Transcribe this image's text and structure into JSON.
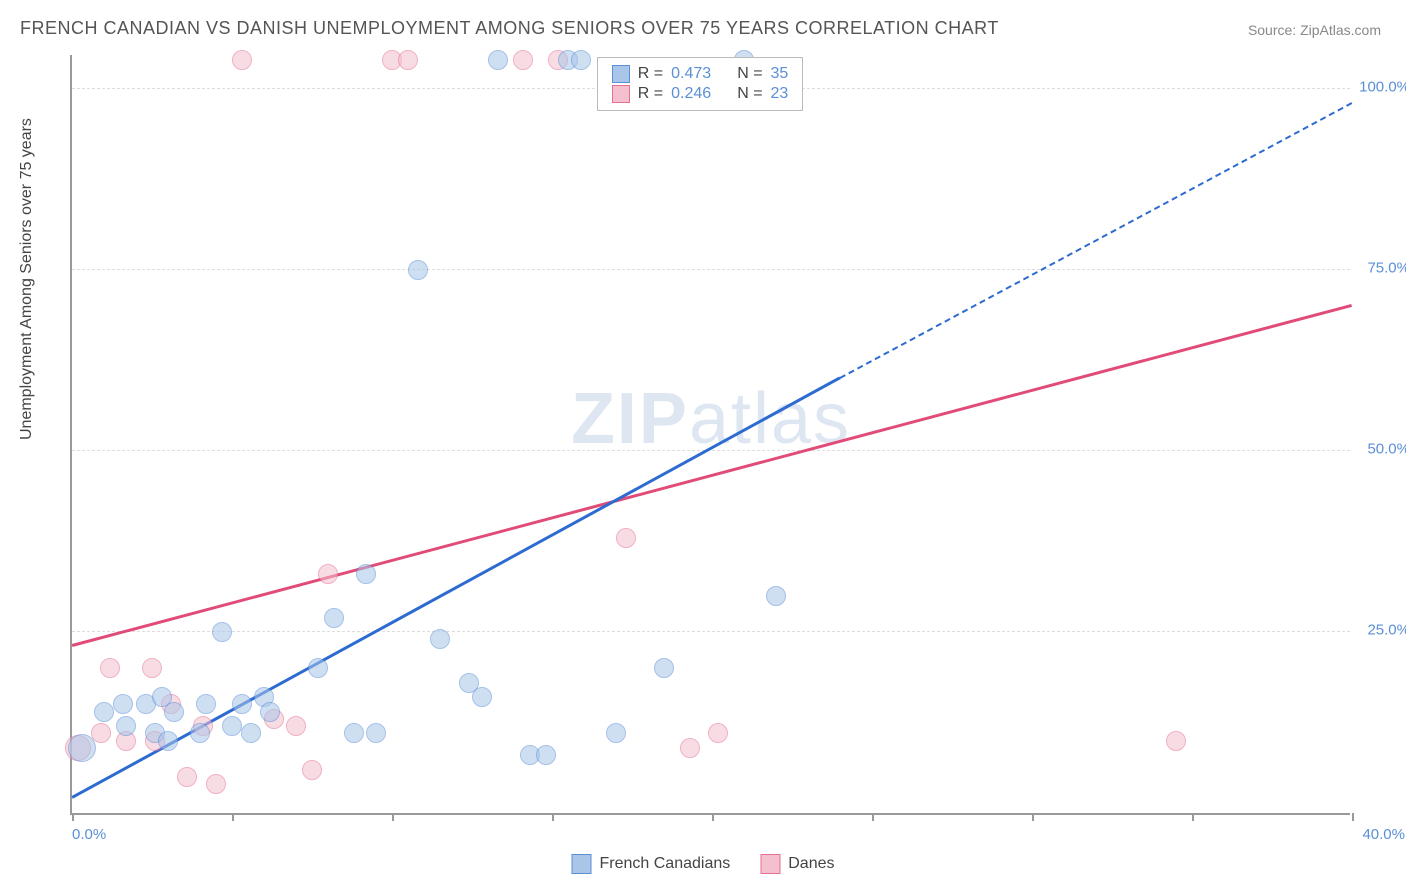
{
  "title": "FRENCH CANADIAN VS DANISH UNEMPLOYMENT AMONG SENIORS OVER 75 YEARS CORRELATION CHART",
  "source": "Source: ZipAtlas.com",
  "ylabel": "Unemployment Among Seniors over 75 years",
  "watermark": "ZIPatlas",
  "chart": {
    "type": "scatter",
    "xlim": [
      0,
      40
    ],
    "ylim": [
      0,
      105
    ],
    "x_ticks": [
      0,
      5,
      10,
      15,
      20,
      25,
      30,
      35,
      40
    ],
    "x_tick_labels_shown": {
      "0": "0.0%",
      "40": "40.0%"
    },
    "y_gridlines": [
      25,
      50,
      75,
      100
    ],
    "y_tick_labels": {
      "25": "25.0%",
      "50": "50.0%",
      "75": "75.0%",
      "100": "100.0%"
    },
    "background_color": "#ffffff",
    "grid_color": "#dddddd",
    "axis_color": "#999999",
    "tick_label_color": "#5b8fd6",
    "point_radius": 10,
    "point_opacity": 0.55,
    "series": [
      {
        "name": "French Canadians",
        "fill_color": "#a9c5e8",
        "stroke_color": "#5b8fd6",
        "trend_color": "#2e6bd1",
        "R": 0.473,
        "N": 35,
        "trend": {
          "x1": 0,
          "y1": 2,
          "x2_solid": 24,
          "y2_solid": 60,
          "x2": 40,
          "y2": 98
        },
        "points": [
          {
            "x": 0.3,
            "y": 9,
            "r": 14
          },
          {
            "x": 1.0,
            "y": 14
          },
          {
            "x": 1.6,
            "y": 15
          },
          {
            "x": 1.7,
            "y": 12
          },
          {
            "x": 2.3,
            "y": 15
          },
          {
            "x": 2.6,
            "y": 11
          },
          {
            "x": 2.8,
            "y": 16
          },
          {
            "x": 3.0,
            "y": 10
          },
          {
            "x": 3.2,
            "y": 14
          },
          {
            "x": 4.0,
            "y": 11
          },
          {
            "x": 4.2,
            "y": 15
          },
          {
            "x": 4.7,
            "y": 25
          },
          {
            "x": 5.0,
            "y": 12
          },
          {
            "x": 5.3,
            "y": 15
          },
          {
            "x": 5.6,
            "y": 11
          },
          {
            "x": 6.0,
            "y": 16
          },
          {
            "x": 6.2,
            "y": 14
          },
          {
            "x": 7.7,
            "y": 20
          },
          {
            "x": 8.2,
            "y": 27
          },
          {
            "x": 8.8,
            "y": 11
          },
          {
            "x": 9.2,
            "y": 33
          },
          {
            "x": 9.5,
            "y": 11
          },
          {
            "x": 10.8,
            "y": 75
          },
          {
            "x": 11.5,
            "y": 24
          },
          {
            "x": 12.4,
            "y": 18
          },
          {
            "x": 12.8,
            "y": 16
          },
          {
            "x": 13.3,
            "y": 104
          },
          {
            "x": 14.3,
            "y": 8
          },
          {
            "x": 14.8,
            "y": 8
          },
          {
            "x": 15.5,
            "y": 104
          },
          {
            "x": 17.0,
            "y": 11
          },
          {
            "x": 18.5,
            "y": 20
          },
          {
            "x": 21.0,
            "y": 104
          },
          {
            "x": 22.0,
            "y": 30
          },
          {
            "x": 15.9,
            "y": 104
          }
        ]
      },
      {
        "name": "Danes",
        "fill_color": "#f4c0ce",
        "stroke_color": "#e76f91",
        "trend_color": "#e14b77",
        "R": 0.246,
        "N": 23,
        "trend": {
          "x1": 0,
          "y1": 23,
          "x2_solid": 40,
          "y2_solid": 70,
          "x2": 40,
          "y2": 70
        },
        "points": [
          {
            "x": 0.2,
            "y": 9,
            "r": 13
          },
          {
            "x": 0.9,
            "y": 11
          },
          {
            "x": 1.2,
            "y": 20
          },
          {
            "x": 1.7,
            "y": 10
          },
          {
            "x": 2.5,
            "y": 20
          },
          {
            "x": 2.6,
            "y": 10
          },
          {
            "x": 3.1,
            "y": 15
          },
          {
            "x": 3.6,
            "y": 5
          },
          {
            "x": 4.1,
            "y": 12
          },
          {
            "x": 4.5,
            "y": 4
          },
          {
            "x": 5.3,
            "y": 104
          },
          {
            "x": 6.3,
            "y": 13
          },
          {
            "x": 7.0,
            "y": 12
          },
          {
            "x": 7.5,
            "y": 6
          },
          {
            "x": 8.0,
            "y": 33
          },
          {
            "x": 10.0,
            "y": 104
          },
          {
            "x": 10.5,
            "y": 104
          },
          {
            "x": 14.1,
            "y": 104
          },
          {
            "x": 15.2,
            "y": 104
          },
          {
            "x": 17.3,
            "y": 38
          },
          {
            "x": 19.3,
            "y": 9
          },
          {
            "x": 20.2,
            "y": 11
          },
          {
            "x": 34.5,
            "y": 10
          }
        ]
      }
    ]
  },
  "stats_box": {
    "top_pct": 0,
    "left_pct": 41
  },
  "bottom_legend": [
    {
      "label": "French Canadians",
      "fill": "#a9c5e8",
      "stroke": "#5b8fd6"
    },
    {
      "label": "Danes",
      "fill": "#f4c0ce",
      "stroke": "#e76f91"
    }
  ]
}
